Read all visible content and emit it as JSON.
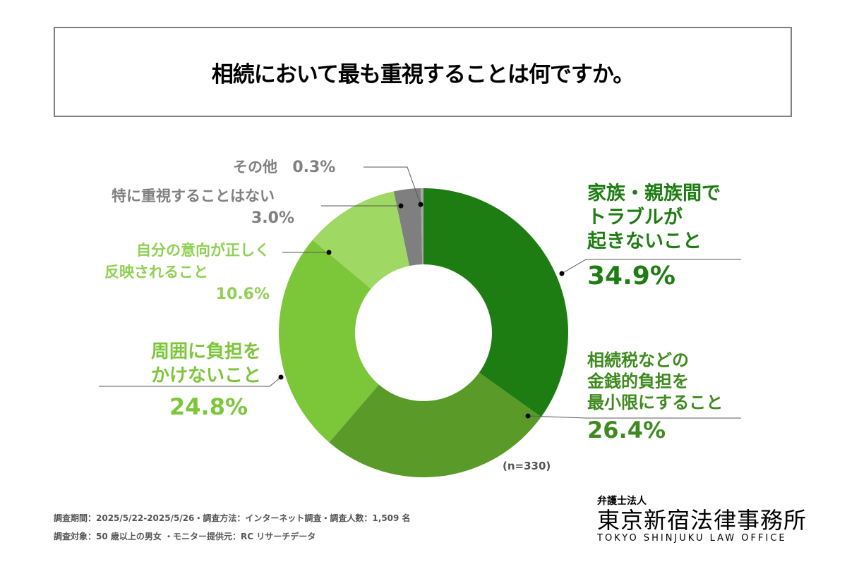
{
  "title": "相続において最も重視することは何ですか。",
  "chart_data": {
    "type": "pie",
    "donut": true,
    "start": "top",
    "direction": "clockwise",
    "title": "相続において最も重視することは何ですか。",
    "slices": [
      {
        "label_lines": [
          "家族・親族間で",
          "トラブルが",
          "起きないこと"
        ],
        "value": 34.9,
        "display": "34.9%",
        "color": "#1e7d12",
        "text_color": "#1e7d12"
      },
      {
        "label_lines": [
          "相続税などの",
          "金銭的負担を",
          "最小限にすること"
        ],
        "value": 26.4,
        "display": "26.4%",
        "color": "#5a9a29",
        "text_color": "#3e8a1e"
      },
      {
        "label_lines": [
          "周囲に負担を",
          "かけないこと"
        ],
        "value": 24.8,
        "display": "24.8%",
        "color": "#7cc63a",
        "text_color": "#7cc63a"
      },
      {
        "label_lines": [
          "自分の意向が正しく",
          "反映されること"
        ],
        "value": 10.6,
        "display": "10.6%",
        "color": "#9fd963",
        "text_color": "#8fd052"
      },
      {
        "label_lines": [
          "特に重視することはない"
        ],
        "value": 3.0,
        "display": "3.0%",
        "color": "#7f7f7f",
        "text_color": "#808080"
      },
      {
        "label_lines": [
          "その他"
        ],
        "value": 0.3,
        "display": "0.3%",
        "color": "#a6a6a6",
        "text_color": "#808080"
      }
    ],
    "sample_size": "(n=330)"
  },
  "footer": {
    "line1": "調査期間：2025/5/22-2025/5/26・調査方法：インターネット調査・調査人数：1,509 名",
    "line2": "調査対象：50 歳以上の男女 ・モニター提供元：RC リサーチデータ"
  },
  "logo": {
    "sub": "弁護士法人",
    "main": "東京新宿法律事務所",
    "en": "TOKYO SHINJUKU LAW OFFICE"
  }
}
